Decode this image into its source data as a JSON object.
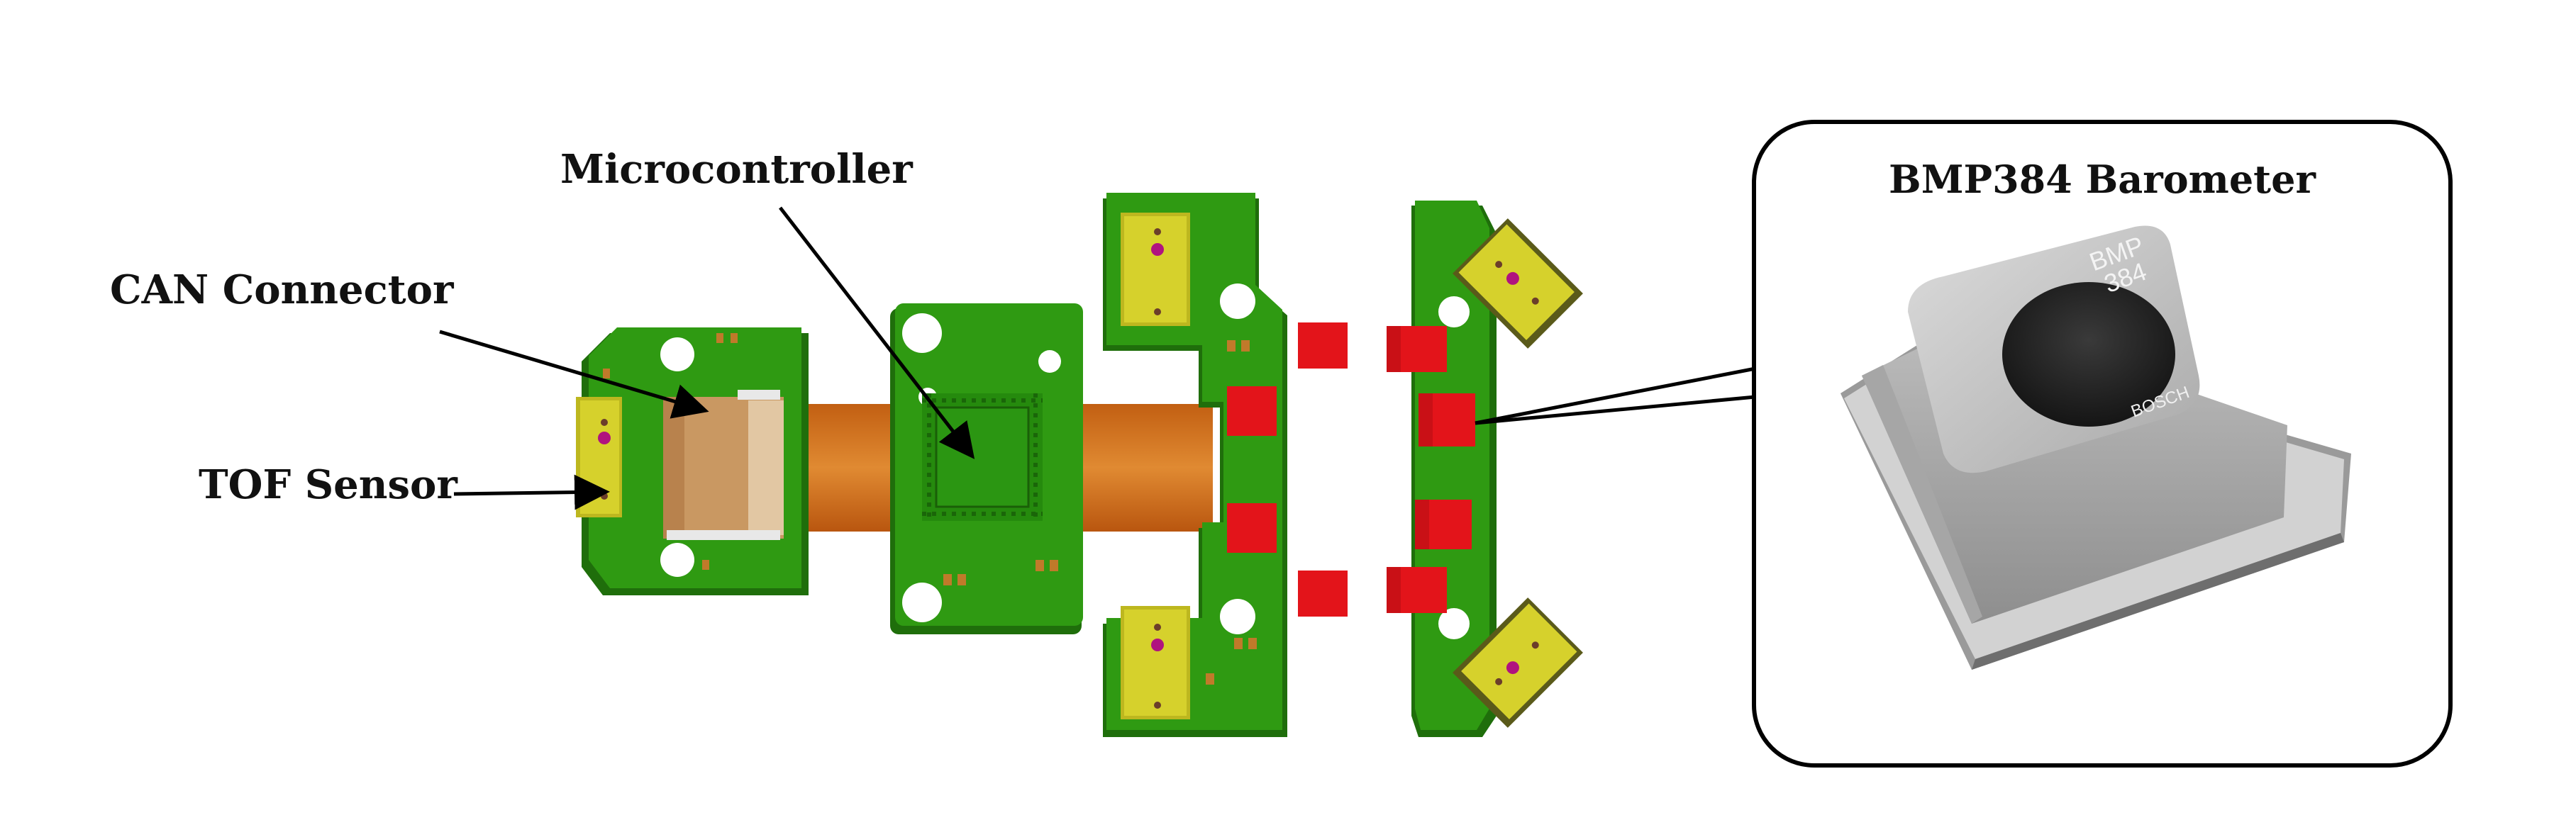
{
  "labels": {
    "microcontroller": "Microcontroller",
    "can_connector": "CAN Connector",
    "tof_sensor": "TOF Sensor",
    "barometer_title": "BMP384 Barometer"
  },
  "chip_marking": {
    "line1": "BMP",
    "line2": "384",
    "brand": "BOSCH"
  },
  "colors": {
    "pcb_green": "#2f9a12",
    "pcb_dark": "#1f6e0b",
    "flex_orange": "#d2731c",
    "sensor_yellow": "#d6d12c",
    "red_component": "#e3141a",
    "connector_tan": "#c99862",
    "metal_gray": "#b7b7b7"
  }
}
